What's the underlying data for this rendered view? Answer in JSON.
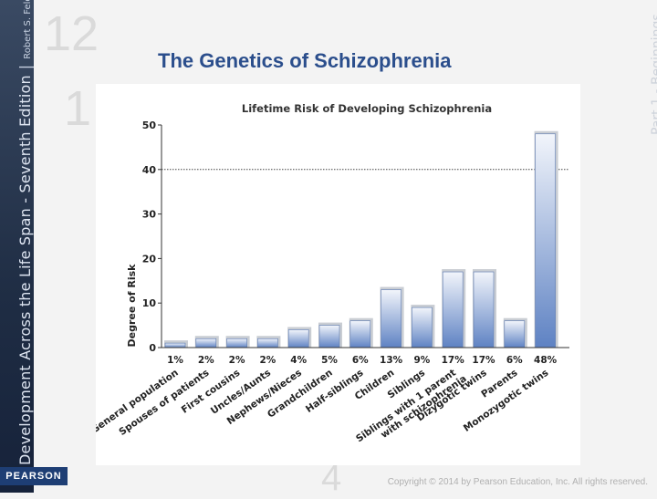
{
  "slide": {
    "title": "The Genetics of Schizophrenia",
    "book_title": "Development Across the Life Span - Seventh Edition",
    "separator": "|",
    "author": "Robert S. Feldman",
    "part_label": "Part 1 - Beginnings",
    "publisher_logo": "PEARSON",
    "copyright": "Copyright © 2014 by Pearson Education, Inc. All rights reserved.",
    "background_numbers": [
      "12",
      "1",
      "4"
    ]
  },
  "colors": {
    "sidebar": "#1f2d44",
    "title": "#2b4e8c",
    "bar_top": "#f2f5fb",
    "bar_bottom": "#5e82c3",
    "bar_shadow": "#c9cdd3"
  },
  "chart_data": {
    "type": "bar",
    "title": "Lifetime Risk of Developing Schizophrenia",
    "xlabel": "",
    "ylabel": "Degree of Risk",
    "ylim": [
      0,
      50
    ],
    "yticks": [
      0,
      10,
      20,
      30,
      40,
      50
    ],
    "reference_line": 40,
    "grid": false,
    "categories": [
      "General population",
      "Spouses of patients",
      "First cousins",
      "Uncles/Aunts",
      "Nephews/Nieces",
      "Grandchildren",
      "Half-siblings",
      "Children",
      "Siblings",
      "Siblings with 1 parent with schizophrenia",
      "Dizygotic twins",
      "Parents",
      "Monozygotic twins"
    ],
    "category_lines": [
      [
        "General population"
      ],
      [
        "Spouses of patients"
      ],
      [
        "First cousins"
      ],
      [
        "Uncles/Aunts"
      ],
      [
        "Nephews/Nieces"
      ],
      [
        "Grandchildren"
      ],
      [
        "Half-siblings"
      ],
      [
        "Children"
      ],
      [
        "Siblings"
      ],
      [
        "Siblings with 1 parent",
        "with schizophrenia"
      ],
      [
        "Dizygotic twins"
      ],
      [
        "Parents"
      ],
      [
        "Monozygotic twins"
      ]
    ],
    "values": [
      1,
      2,
      2,
      2,
      4,
      5,
      6,
      13,
      9,
      17,
      17,
      6,
      48
    ],
    "value_labels": [
      "1%",
      "2%",
      "2%",
      "2%",
      "4%",
      "5%",
      "6%",
      "13%",
      "9%",
      "17%",
      "17%",
      "6%",
      "48%"
    ]
  }
}
